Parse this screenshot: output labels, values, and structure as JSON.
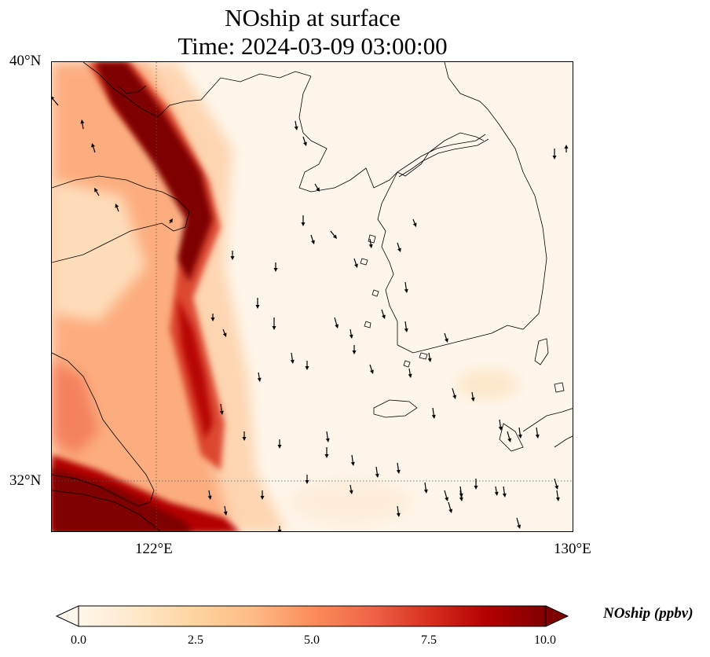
{
  "title": {
    "line1": "NOship at surface",
    "line2": "Time: 2024-03-09 03:00:00"
  },
  "map": {
    "variable": "NOship",
    "projection": "PlateCarree",
    "lat_labels": [
      "40°N",
      "32°N"
    ],
    "lon_labels": [
      "122°E",
      "130°E"
    ],
    "lat_range": [
      31,
      40
    ],
    "lon_range": [
      120,
      130
    ],
    "gridlines": "dotted at 122°E and 32°N",
    "wind_vectors": "black arrows, mostly southward over the Yellow Sea",
    "high_value_regions": [
      "Bohai Sea / Liaodong coast",
      "shipping lane along Shandong coast",
      "Yangtze estuary near Shanghai"
    ]
  },
  "colorbar": {
    "label": "NOship (ppbv)",
    "ticks": [
      "0.0",
      "2.5",
      "5.0",
      "7.5",
      "10.0"
    ],
    "min": 0,
    "max": 10,
    "colormap": "OrRd",
    "extend": "both",
    "colors": [
      "#fff7ec",
      "#fee8c8",
      "#fdd49e",
      "#fdbb84",
      "#fc8d59",
      "#ef6548",
      "#d7301f",
      "#b30000",
      "#7f0000"
    ]
  }
}
